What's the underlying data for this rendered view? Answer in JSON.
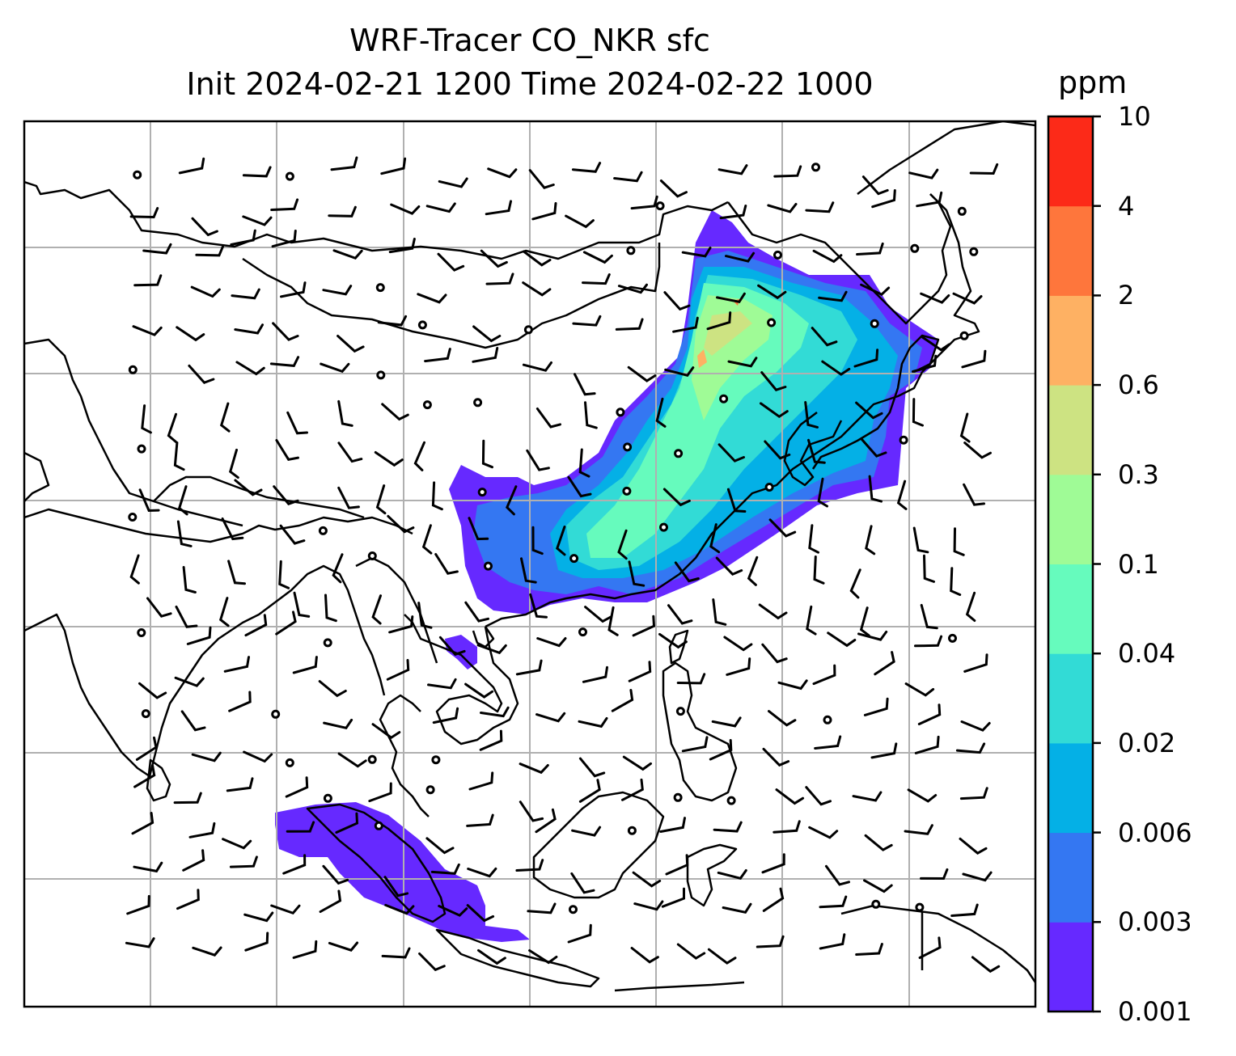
{
  "title_line1": "WRF-Tracer CO_NKR sfc",
  "title_line2": "Init 2024-02-21 1200 Time 2024-02-22 1000",
  "colorbar": {
    "unit": "ppm",
    "labels": [
      "0.001",
      "0.003",
      "0.006",
      "0.02",
      "0.04",
      "0.1",
      "0.3",
      "0.6",
      "2",
      "4",
      "10"
    ],
    "colors": [
      "#6629ff",
      "#3477f2",
      "#04b0e6",
      "#32dbd6",
      "#66fbbd",
      "#9ffb96",
      "#cde382",
      "#feb163",
      "#fe763c",
      "#fc2a18"
    ]
  },
  "map": {
    "features": [
      "coastlines",
      "country borders",
      "gridlines",
      "wind barbs",
      "CO tracer concentration"
    ],
    "gridline_color": "#b0b0b0"
  }
}
